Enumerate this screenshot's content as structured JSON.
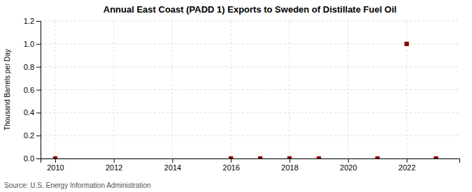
{
  "chart_data": {
    "type": "scatter",
    "title": "Annual East Coast (PADD 1) Exports to Sweden of Distillate Fuel Oil",
    "ylabel": "Thousand Barrels per Day",
    "annotations": [
      "Source: U.S. Energy Information Administration"
    ],
    "x": [
      2010,
      2016,
      2017,
      2018,
      2019,
      2021,
      2022,
      2023
    ],
    "values": [
      0.0,
      0.0,
      0.0,
      0.0,
      0.0,
      0.0,
      1.0,
      0.0
    ],
    "color": "#8b0000",
    "marker": "square",
    "xlim": [
      2009.5,
      2023.8
    ],
    "xticks": [
      2010,
      2012,
      2014,
      2016,
      2018,
      2020,
      2022
    ],
    "ylim": [
      0,
      1.2
    ],
    "yticks": [
      {
        "value": 0,
        "label": "0.0"
      },
      0.2,
      0.4,
      0.6,
      0.8,
      {
        "value": 1,
        "label": "1.0"
      },
      1.2
    ],
    "grid": true
  }
}
